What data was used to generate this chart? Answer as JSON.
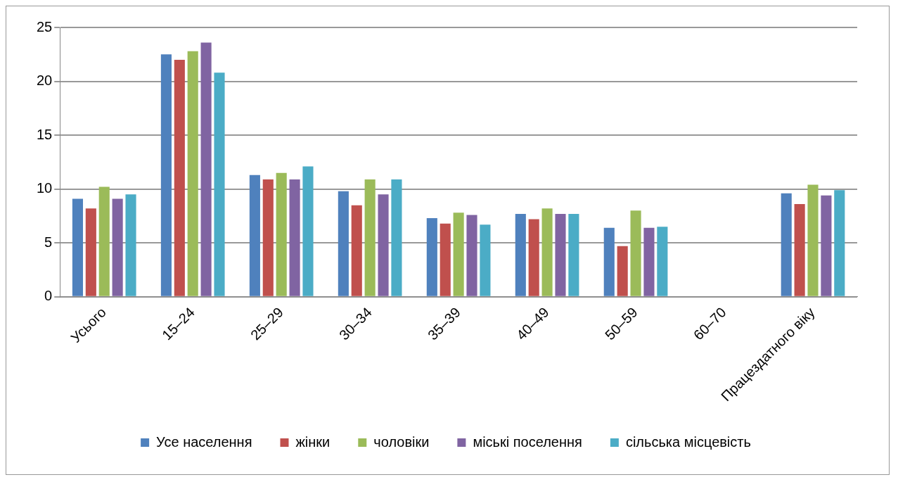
{
  "chart_data": {
    "type": "bar",
    "categories": [
      "Усього",
      "15–24",
      "25–29",
      "30–34",
      "35–39",
      "40–49",
      "50–59",
      "60–70",
      "Працездатного віку"
    ],
    "series": [
      {
        "name": "Усе населення",
        "color": "#4f81bd",
        "values": [
          9.1,
          22.5,
          11.3,
          9.8,
          7.3,
          7.7,
          6.4,
          0,
          9.6
        ]
      },
      {
        "name": "жінки",
        "color": "#c0504d",
        "values": [
          8.2,
          22.0,
          10.9,
          8.5,
          6.8,
          7.2,
          4.7,
          0,
          8.6
        ]
      },
      {
        "name": "чоловіки",
        "color": "#9bbb59",
        "values": [
          10.2,
          22.8,
          11.5,
          10.9,
          7.8,
          8.2,
          8.0,
          0,
          10.4
        ]
      },
      {
        "name": "міські поселення",
        "color": "#8064a2",
        "values": [
          9.1,
          23.6,
          10.9,
          9.5,
          7.6,
          7.7,
          6.4,
          0,
          9.4
        ]
      },
      {
        "name": "сільська місцевість",
        "color": "#4bacc6",
        "values": [
          9.5,
          20.8,
          12.1,
          10.9,
          6.7,
          7.7,
          6.5,
          0,
          9.9
        ]
      }
    ],
    "ylim": [
      0,
      25
    ],
    "yticks": [
      0,
      5,
      10,
      15,
      20,
      25
    ],
    "grid": "y",
    "legend": "bottom"
  }
}
